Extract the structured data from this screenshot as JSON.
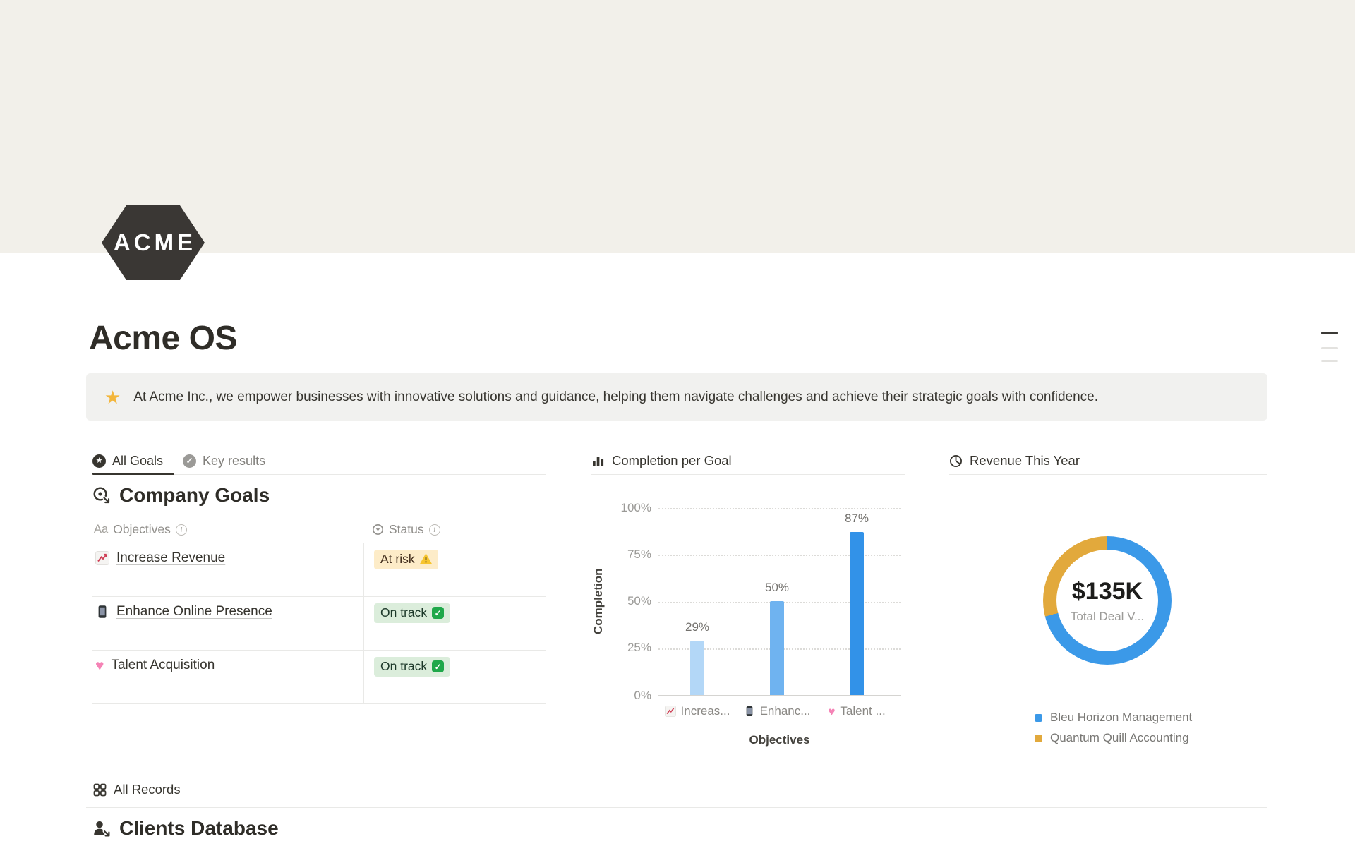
{
  "page": {
    "logo_text": "ACME",
    "title": "Acme OS",
    "callout": {
      "icon": "glowing-star",
      "text": "At Acme Inc., we empower businesses with innovative solutions and guidance, helping them navigate challenges and achieve their strategic goals with confidence."
    }
  },
  "goals": {
    "tabs": [
      {
        "label": "All Goals",
        "icon": "star-circle",
        "active": true
      },
      {
        "label": "Key results",
        "icon": "check-circle",
        "active": false
      }
    ],
    "heading": "Company Goals",
    "columns": {
      "objectives": {
        "label": "Objectives",
        "type_icon_text": "Aa"
      },
      "status": {
        "label": "Status"
      }
    },
    "rows": [
      {
        "icon": "chart-increasing",
        "objective": "Increase Revenue",
        "status": "At risk",
        "status_icon": "warning",
        "status_bg": "#fdecc8",
        "status_text_color": "#402c1b"
      },
      {
        "icon": "mobile-phone",
        "objective": "Enhance Online Presence",
        "status": "On track",
        "status_icon": "check-mark-button",
        "status_bg": "#dbeddb",
        "status_text_color": "#1c3829"
      },
      {
        "icon": "growing-heart",
        "objective": "Talent Acquisition",
        "status": "On track",
        "status_icon": "check-mark-button",
        "status_bg": "#dbeddb",
        "status_text_color": "#1c3829"
      }
    ]
  },
  "records": {
    "tab_label": "All Records",
    "heading": "Clients Database"
  },
  "chart_data": [
    {
      "type": "bar",
      "title": "Completion per Goal",
      "categories": [
        "Increase Revenue",
        "Enhance Online Presence",
        "Talent Acquisition"
      ],
      "x_tick_labels": [
        "Increas...",
        "Enhanc...",
        "Talent ..."
      ],
      "x_tick_icons": [
        "chart-increasing",
        "mobile-phone",
        "growing-heart"
      ],
      "values": [
        29,
        50,
        87
      ],
      "value_labels": [
        "29%",
        "50%",
        "87%"
      ],
      "xlabel": "Objectives",
      "ylabel": "Completion",
      "ylim": [
        0,
        100
      ],
      "yticks": [
        "0%",
        "25%",
        "50%",
        "75%",
        "100%"
      ],
      "grid": "horizontal-dotted",
      "legend_position": "none",
      "bar_colors": [
        "#b3d7f7",
        "#6fb3f0",
        "#3292e8"
      ]
    },
    {
      "type": "pie",
      "subtype": "donut",
      "title": "Revenue This Year",
      "center_value": "$135K",
      "center_label": "Total Deal V...",
      "legend_position": "bottom-left",
      "segments": [
        {
          "label": "Bleu Horizon Management",
          "color": "#3b99e8",
          "fraction": 0.71
        },
        {
          "label": "Quantum Quill Accounting",
          "color": "#e2a93c",
          "fraction": 0.29
        }
      ]
    }
  ]
}
